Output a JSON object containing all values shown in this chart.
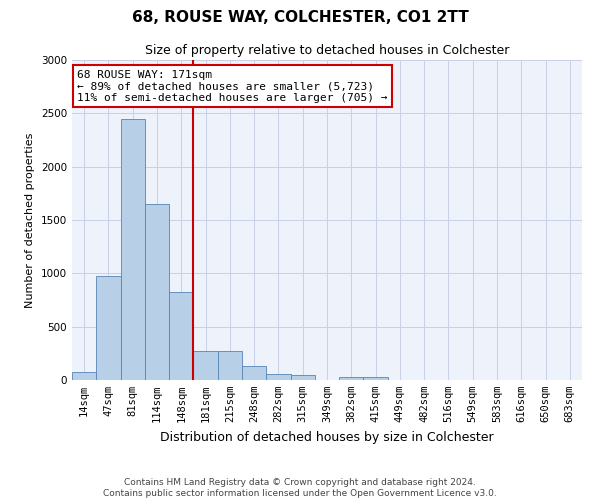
{
  "title": "68, ROUSE WAY, COLCHESTER, CO1 2TT",
  "subtitle": "Size of property relative to detached houses in Colchester",
  "xlabel": "Distribution of detached houses by size in Colchester",
  "ylabel": "Number of detached properties",
  "categories": [
    "14sqm",
    "47sqm",
    "81sqm",
    "114sqm",
    "148sqm",
    "181sqm",
    "215sqm",
    "248sqm",
    "282sqm",
    "315sqm",
    "349sqm",
    "382sqm",
    "415sqm",
    "449sqm",
    "482sqm",
    "516sqm",
    "549sqm",
    "583sqm",
    "616sqm",
    "650sqm",
    "683sqm"
  ],
  "values": [
    75,
    975,
    2450,
    1650,
    825,
    275,
    270,
    130,
    60,
    50,
    0,
    25,
    30,
    0,
    0,
    0,
    0,
    0,
    0,
    0,
    0
  ],
  "bar_color": "#b8cfe8",
  "bar_edge_color": "#5585b5",
  "vline_x_index": 5,
  "vline_color": "#cc0000",
  "annotation_text": "68 ROUSE WAY: 171sqm\n← 89% of detached houses are smaller (5,723)\n11% of semi-detached houses are larger (705) →",
  "annotation_box_color": "#ffffff",
  "annotation_box_edge": "#cc0000",
  "ylim": [
    0,
    3000
  ],
  "yticks": [
    0,
    500,
    1000,
    1500,
    2000,
    2500,
    3000
  ],
  "footer1": "Contains HM Land Registry data © Crown copyright and database right 2024.",
  "footer2": "Contains public sector information licensed under the Open Government Licence v3.0.",
  "background_color": "#eef2fb",
  "grid_color": "#c8d0e8",
  "title_fontsize": 11,
  "subtitle_fontsize": 9,
  "xlabel_fontsize": 9,
  "ylabel_fontsize": 8,
  "tick_fontsize": 7.5,
  "footer_fontsize": 6.5,
  "annot_fontsize": 8
}
